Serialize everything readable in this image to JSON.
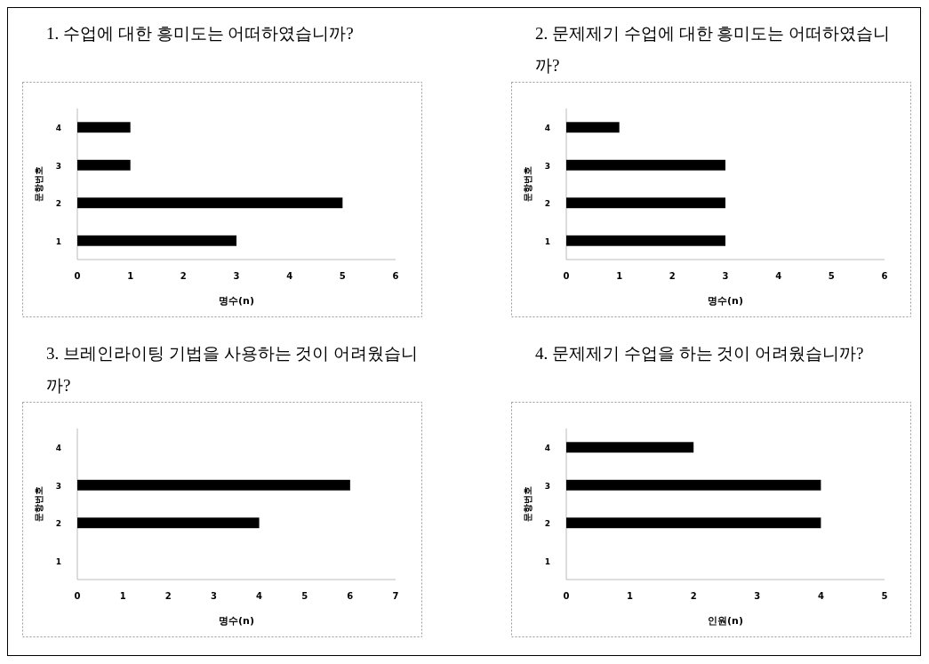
{
  "chart_data": [
    {
      "type": "bar",
      "orientation": "horizontal",
      "title": "1. 수업에 대한 흥미도는 어떠하였습니까?",
      "xlabel": "명수(n)",
      "ylabel": "문항번호",
      "categories": [
        "4",
        "3",
        "2",
        "1"
      ],
      "values": [
        1,
        1,
        5,
        3
      ],
      "color": "#000000",
      "xlim": [
        0,
        6
      ],
      "xticks": [
        0,
        1,
        2,
        3,
        4,
        5,
        6
      ]
    },
    {
      "type": "bar",
      "orientation": "horizontal",
      "title": "2. 문제제기 수업에 대한 흥미도는 어떠하였습니까?",
      "xlabel": "명수(n)",
      "ylabel": "문항번호",
      "categories": [
        "4",
        "3",
        "2",
        "1"
      ],
      "values": [
        1,
        3,
        3,
        3
      ],
      "color": "#000000",
      "xlim": [
        0,
        6
      ],
      "xticks": [
        0,
        1,
        2,
        3,
        4,
        5,
        6
      ]
    },
    {
      "type": "bar",
      "orientation": "horizontal",
      "title": "3. 브레인라이팅 기법을 사용하는 것이 어려웠습니까?",
      "xlabel": "명수(n)",
      "ylabel": "문항번호",
      "categories": [
        "4",
        "3",
        "2",
        "1"
      ],
      "values": [
        null,
        6,
        4,
        null
      ],
      "color": "#000000",
      "xlim": [
        0,
        7
      ],
      "xticks": [
        0,
        1,
        2,
        3,
        4,
        5,
        6,
        7
      ]
    },
    {
      "type": "bar",
      "orientation": "horizontal",
      "title": "4. 문제제기 수업을 하는 것이 어려웠습니까?",
      "xlabel": "인원(n)",
      "ylabel": "문항번호",
      "categories": [
        "4",
        "3",
        "2",
        "1"
      ],
      "values": [
        2,
        4,
        4,
        null
      ],
      "color": "#000000",
      "xlim": [
        0,
        5
      ],
      "xticks": [
        0,
        1,
        2,
        3,
        4,
        5
      ]
    }
  ]
}
